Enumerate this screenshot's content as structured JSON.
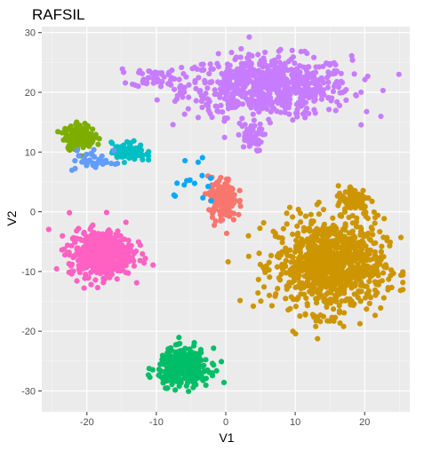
{
  "chart_data": {
    "type": "scatter",
    "title": "RAFSIL",
    "xlabel": "V1",
    "ylabel": "V2",
    "xlim": [
      -26.5,
      26.5
    ],
    "ylim": [
      -33.5,
      31
    ],
    "x_ticks": [
      -20,
      -10,
      0,
      10,
      20
    ],
    "y_ticks": [
      -30,
      -20,
      -10,
      0,
      10,
      20,
      30
    ],
    "grid": true,
    "legend": "none",
    "clusters": [
      {
        "color": "#C77CFF",
        "center": [
          6,
          21
        ],
        "spread": [
          10,
          4.2
        ],
        "n": 700
      },
      {
        "color": "#C77CFF",
        "center": [
          -10,
          22.5
        ],
        "spread": [
          3,
          1.3
        ],
        "n": 50
      },
      {
        "color": "#C77CFF",
        "center": [
          3.5,
          12.5
        ],
        "spread": [
          1.5,
          2
        ],
        "n": 45
      },
      {
        "color": "#CD9600",
        "center": [
          15,
          -9
        ],
        "spread": [
          6.5,
          6.5
        ],
        "n": 900
      },
      {
        "color": "#CD9600",
        "center": [
          18.5,
          2
        ],
        "spread": [
          2,
          2
        ],
        "n": 100
      },
      {
        "color": "#FF61C3",
        "center": [
          -18,
          -7
        ],
        "spread": [
          3.8,
          3.2
        ],
        "n": 520
      },
      {
        "color": "#00BFC4",
        "center": [
          -14,
          10
        ],
        "spread": [
          2,
          1.3
        ],
        "n": 90
      },
      {
        "color": "#7CAE00",
        "center": [
          -21,
          12.5
        ],
        "spread": [
          1.8,
          1.7
        ],
        "n": 170
      },
      {
        "color": "#F8766D",
        "center": [
          -0.5,
          2
        ],
        "spread": [
          1.7,
          3
        ],
        "n": 160
      },
      {
        "color": "#00BE67",
        "center": [
          -6,
          -26
        ],
        "spread": [
          3,
          2.5
        ],
        "n": 340
      },
      {
        "color": "#619CFF",
        "center": [
          -19,
          8.5
        ],
        "spread": [
          2.5,
          1.5
        ],
        "n": 35
      },
      {
        "color": "#00A9FF",
        "center": [
          -4,
          5
        ],
        "spread": [
          4,
          4
        ],
        "n": 15
      }
    ]
  }
}
